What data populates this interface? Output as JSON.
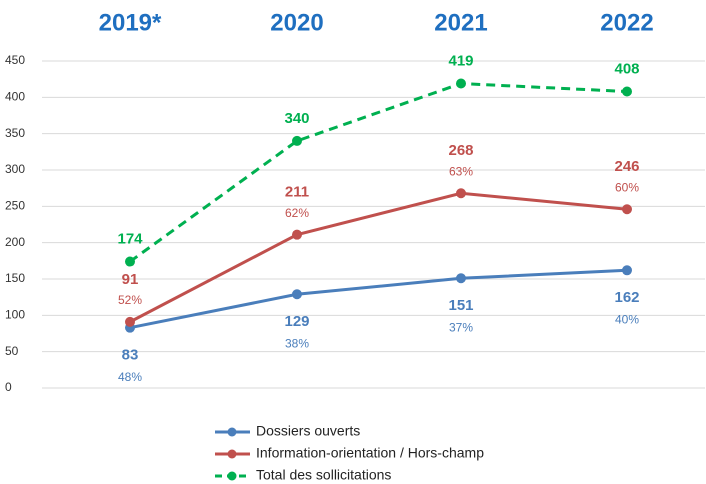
{
  "chart_data": {
    "type": "line",
    "categories": [
      "2019*",
      "2020",
      "2021",
      "2022"
    ],
    "ylim": [
      0,
      450
    ],
    "yticks": [
      0,
      50,
      100,
      150,
      200,
      250,
      300,
      350,
      400,
      450
    ],
    "grid": true,
    "series": [
      {
        "name": "Dossiers ouverts",
        "color": "#4a7ebb",
        "values": [
          83,
          129,
          151,
          162
        ],
        "share_labels": [
          "48%",
          "38%",
          "37%",
          "40%"
        ],
        "label_position": "below"
      },
      {
        "name": "Information-orientation / Hors-champ",
        "color": "#c0504d",
        "values": [
          91,
          211,
          268,
          246
        ],
        "share_labels": [
          "52%",
          "62%",
          "63%",
          "60%"
        ],
        "label_position": "above"
      },
      {
        "name": "Total des sollicitations",
        "color": "#00b050",
        "dashed": true,
        "values": [
          174,
          340,
          419,
          408
        ],
        "label_position": "above"
      }
    ]
  }
}
